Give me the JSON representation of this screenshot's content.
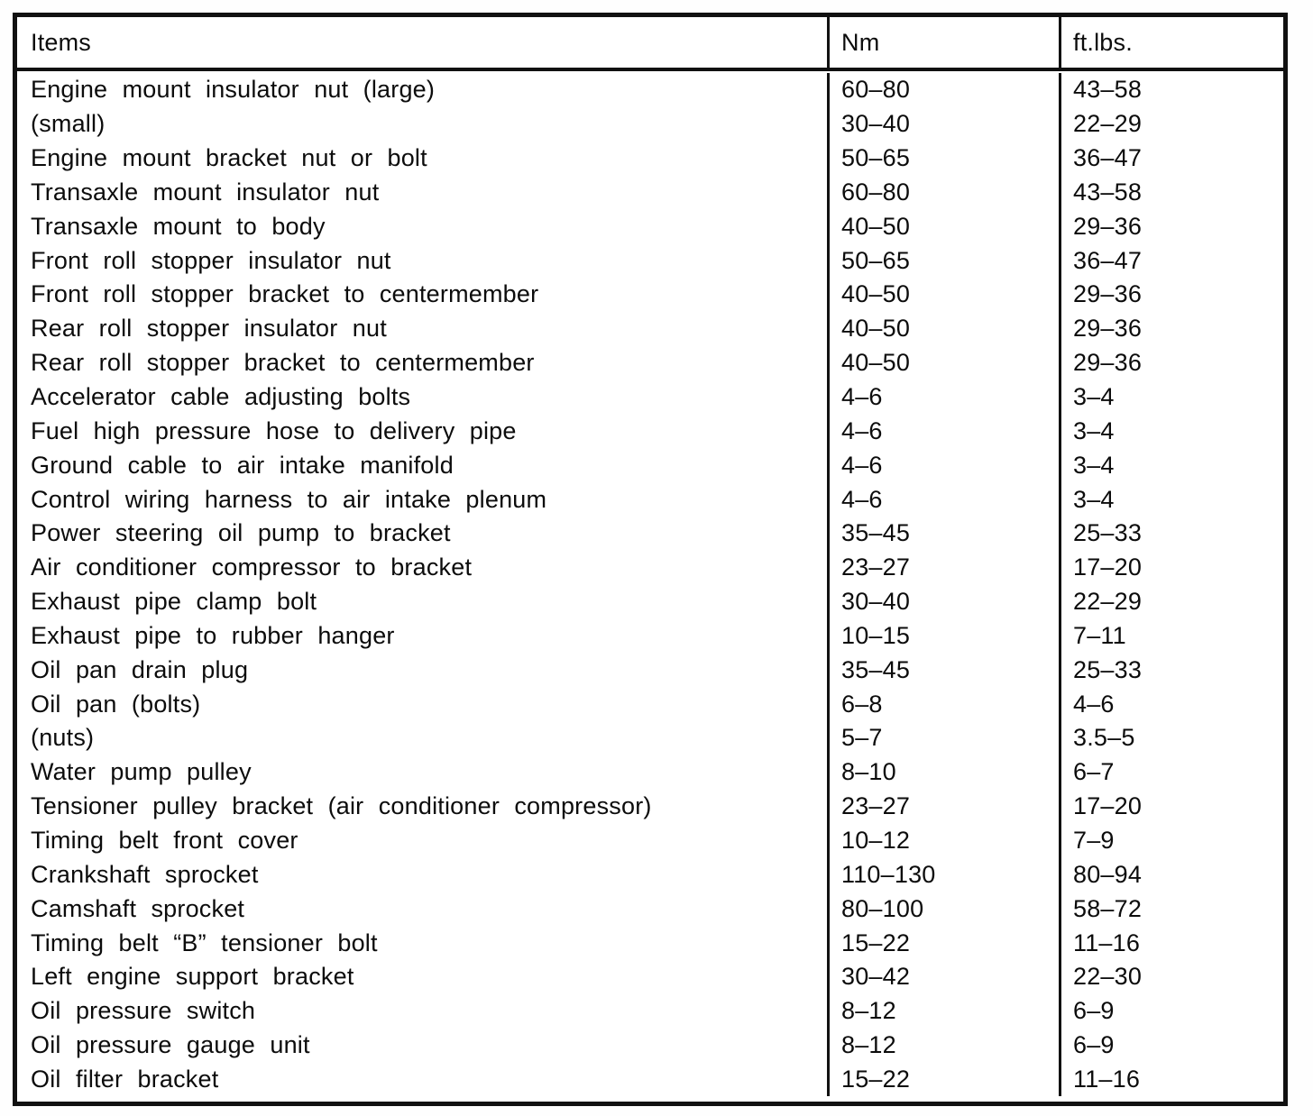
{
  "table": {
    "headers": [
      "Items",
      "Nm",
      "ft.lbs."
    ],
    "rows": [
      {
        "item": "Engine mount insulator nut (large)",
        "nm": "60–80",
        "ftlbs": "43–58",
        "indent": 0
      },
      {
        "item": "(small)",
        "nm": "30–40",
        "ftlbs": "22–29",
        "indent": 2
      },
      {
        "item": "Engine mount bracket nut or bolt",
        "nm": "50–65",
        "ftlbs": "36–47",
        "indent": 0
      },
      {
        "item": "Transaxle mount insulator nut",
        "nm": "60–80",
        "ftlbs": "43–58",
        "indent": 0
      },
      {
        "item": "Transaxle mount to body",
        "nm": "40–50",
        "ftlbs": "29–36",
        "indent": 0
      },
      {
        "item": "Front roll stopper insulator nut",
        "nm": "50–65",
        "ftlbs": "36–47",
        "indent": 0
      },
      {
        "item": "Front roll stopper bracket to centermember",
        "nm": "40–50",
        "ftlbs": "29–36",
        "indent": 0
      },
      {
        "item": "Rear roll stopper insulator nut",
        "nm": "40–50",
        "ftlbs": "29–36",
        "indent": 0
      },
      {
        "item": "Rear roll stopper bracket to centermember",
        "nm": "40–50",
        "ftlbs": "29–36",
        "indent": 0
      },
      {
        "item": "Accelerator cable adjusting bolts",
        "nm": "4–6",
        "ftlbs": "3–4",
        "indent": 0
      },
      {
        "item": "Fuel high pressure hose to delivery pipe",
        "nm": "4–6",
        "ftlbs": "3–4",
        "indent": 0
      },
      {
        "item": "Ground cable to air intake manifold",
        "nm": "4–6",
        "ftlbs": "3–4",
        "indent": 0
      },
      {
        "item": "Control wiring harness to air intake plenum",
        "nm": "4–6",
        "ftlbs": "3–4",
        "indent": 0
      },
      {
        "item": "Power steering oil pump to bracket",
        "nm": "35–45",
        "ftlbs": "25–33",
        "indent": 0
      },
      {
        "item": "Air conditioner compressor to bracket",
        "nm": "23–27",
        "ftlbs": "17–20",
        "indent": 0
      },
      {
        "item": "Exhaust pipe clamp bolt",
        "nm": "30–40",
        "ftlbs": "22–29",
        "indent": 0
      },
      {
        "item": "Exhaust pipe to rubber hanger",
        "nm": "10–15",
        "ftlbs": "7–11",
        "indent": 0
      },
      {
        "item": "Oil pan drain plug",
        "nm": "35–45",
        "ftlbs": "25–33",
        "indent": 0
      },
      {
        "item": "Oil pan (bolts)",
        "nm": "6–8",
        "ftlbs": "4–6",
        "indent": 0
      },
      {
        "item": "(nuts)",
        "nm": "5–7",
        "ftlbs": "3.5–5",
        "indent": 1
      },
      {
        "item": "Water pump pulley",
        "nm": "8–10",
        "ftlbs": "6–7",
        "indent": 0
      },
      {
        "item": "Tensioner pulley bracket (air conditioner compressor)",
        "nm": "23–27",
        "ftlbs": "17–20",
        "indent": 0
      },
      {
        "item": "Timing belt front cover",
        "nm": "10–12",
        "ftlbs": "7–9",
        "indent": 0
      },
      {
        "item": "Crankshaft sprocket",
        "nm": "110–130",
        "ftlbs": "80–94",
        "indent": 0
      },
      {
        "item": "Camshaft sprocket",
        "nm": "80–100",
        "ftlbs": "58–72",
        "indent": 0
      },
      {
        "item": "Timing belt “B” tensioner bolt",
        "nm": "15–22",
        "ftlbs": "11–16",
        "indent": 0
      },
      {
        "item": "Left engine support bracket",
        "nm": "30–42",
        "ftlbs": "22–30",
        "indent": 0
      },
      {
        "item": "Oil pressure switch",
        "nm": "8–12",
        "ftlbs": "6–9",
        "indent": 0
      },
      {
        "item": "Oil pressure gauge unit",
        "nm": "8–12",
        "ftlbs": "6–9",
        "indent": 0
      },
      {
        "item": "Oil filter bracket",
        "nm": "15–22",
        "ftlbs": "11–16",
        "indent": 0
      }
    ]
  }
}
